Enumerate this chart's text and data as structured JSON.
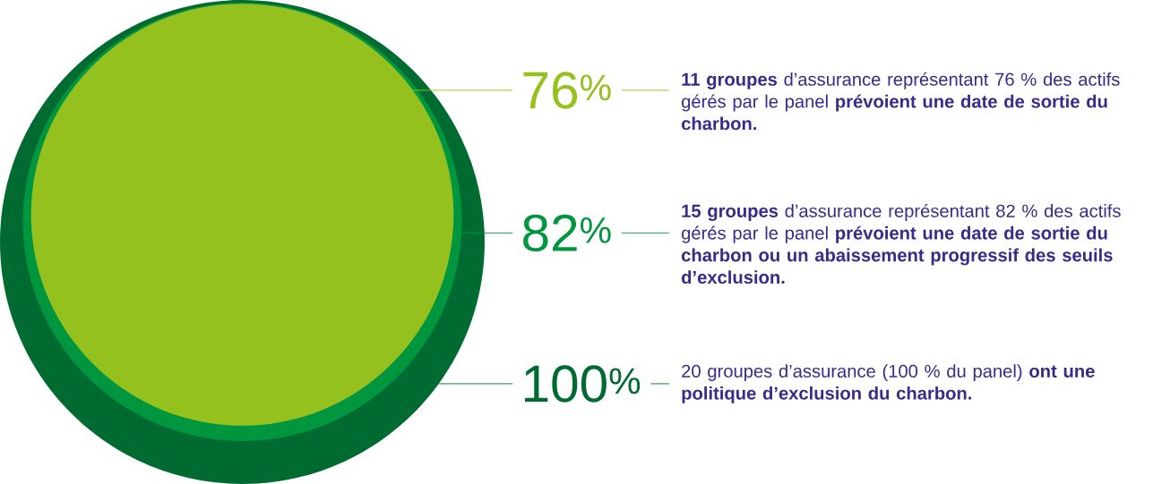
{
  "chart_data": {
    "type": "other",
    "categories": [
      "**11 groupes** d’assurance représentant 76 % des actifs gérés par le panel **prévoient une date de sortie du charbon.**",
      "**15 groupes** d’assurance représentant 82 % des actifs gérés par le panel **prévoient une date de sortie du charbon ou un abaissement progressif des seuils d’exclusion.**",
      "20 groupes d’assurance (100 % du panel) **ont une politique d’exclusion du charbon.**"
    ],
    "values": [
      76,
      82,
      100
    ],
    "value_labels": [
      "76$^{%}$",
      "82$^{%}$",
      "100$^{%}$"
    ],
    "colors": [
      "#95c11f",
      "#00963f",
      "#006b30"
    ]
  }
}
